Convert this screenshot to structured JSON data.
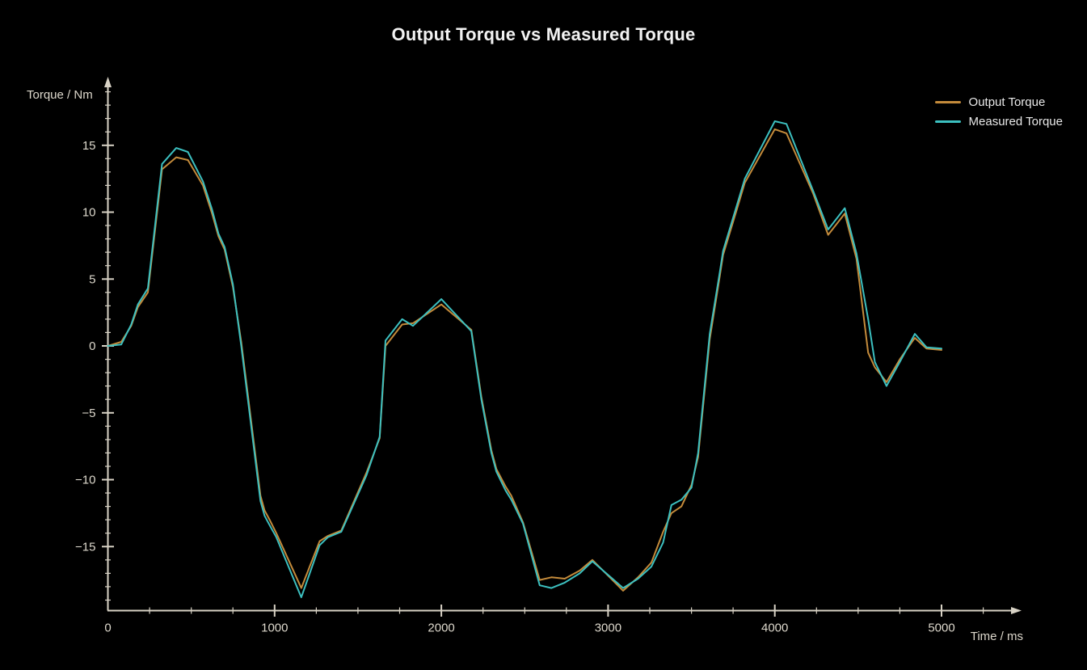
{
  "colors": {
    "background": "#000000",
    "axis": "#d8d2c5",
    "tick_text": "#ddd8cc",
    "title_text": "#f2f2f2",
    "output_torque": "#c48b3b",
    "measured_torque": "#3cc0c0"
  },
  "chart_data": {
    "type": "line",
    "title": "Output Torque vs Measured Torque",
    "xlabel": "Time / ms",
    "ylabel": "Torque / Nm",
    "xlim": [
      0,
      5450
    ],
    "ylim": [
      -20,
      20
    ],
    "grid": false,
    "legend_position": "top-right",
    "x_ticks_major": [
      0,
      1000,
      2000,
      3000,
      4000,
      5000
    ],
    "x_tick_minor_step": 250,
    "x_minor_max": 5250,
    "y_ticks_major": [
      -15,
      -10,
      -5,
      0,
      5,
      10,
      15
    ],
    "y_tick_minor_step": 1,
    "y_minor_range": [
      -19,
      19
    ],
    "x": [
      0,
      80,
      140,
      180,
      240,
      325,
      410,
      480,
      570,
      625,
      663,
      700,
      750,
      800,
      915,
      940,
      970,
      1010,
      1160,
      1270,
      1320,
      1400,
      1550,
      1630,
      1665,
      1765,
      1830,
      2000,
      2180,
      2240,
      2300,
      2330,
      2385,
      2420,
      2490,
      2590,
      2660,
      2740,
      2830,
      2906,
      3090,
      3180,
      3260,
      3330,
      3380,
      3440,
      3500,
      3540,
      3610,
      3670,
      3690,
      3765,
      3820,
      4000,
      4070,
      4230,
      4320,
      4420,
      4490,
      4560,
      4600,
      4670,
      4750,
      4840,
      4910,
      5000
    ],
    "series": [
      {
        "name": "Output Torque",
        "color": "#c48b3b",
        "values": [
          0,
          0.3,
          1.5,
          2.9,
          4.0,
          13.2,
          14.1,
          13.9,
          12.0,
          9.9,
          8.2,
          7.2,
          4.4,
          0.3,
          -11.2,
          -12.3,
          -13.0,
          -14.0,
          -18.1,
          -14.6,
          -14.2,
          -13.8,
          -9.5,
          -6.9,
          0.0,
          1.6,
          1.7,
          3.1,
          1.2,
          -3.8,
          -7.8,
          -9.2,
          -10.5,
          -11.2,
          -13.2,
          -17.5,
          -17.3,
          -17.4,
          -16.8,
          -16.0,
          -18.3,
          -17.3,
          -16.2,
          -13.9,
          -12.5,
          -12.0,
          -10.4,
          -8.3,
          0.5,
          5.2,
          6.8,
          9.9,
          12.2,
          16.2,
          15.9,
          11.4,
          8.3,
          9.9,
          6.5,
          -0.5,
          -1.6,
          -2.7,
          -1.0,
          0.6,
          -0.2,
          -0.3
        ]
      },
      {
        "name": "Measured Torque",
        "color": "#3cc0c0",
        "values": [
          0,
          0.1,
          1.6,
          3.1,
          4.3,
          13.6,
          14.8,
          14.5,
          12.3,
          10.2,
          8.4,
          7.4,
          4.6,
          0.0,
          -11.6,
          -12.7,
          -13.4,
          -14.3,
          -18.8,
          -14.9,
          -14.3,
          -13.9,
          -9.7,
          -6.8,
          0.4,
          2.0,
          1.5,
          3.5,
          1.1,
          -4.0,
          -8.0,
          -9.4,
          -10.8,
          -11.5,
          -13.3,
          -17.9,
          -18.1,
          -17.7,
          -17.0,
          -16.1,
          -18.1,
          -17.4,
          -16.5,
          -14.7,
          -11.9,
          -11.5,
          -10.6,
          -8.0,
          0.9,
          5.5,
          7.1,
          10.2,
          12.5,
          16.8,
          16.6,
          11.6,
          8.7,
          10.3,
          6.9,
          2.0,
          -1.2,
          -3.0,
          -1.2,
          0.9,
          -0.1,
          -0.2
        ]
      }
    ]
  }
}
